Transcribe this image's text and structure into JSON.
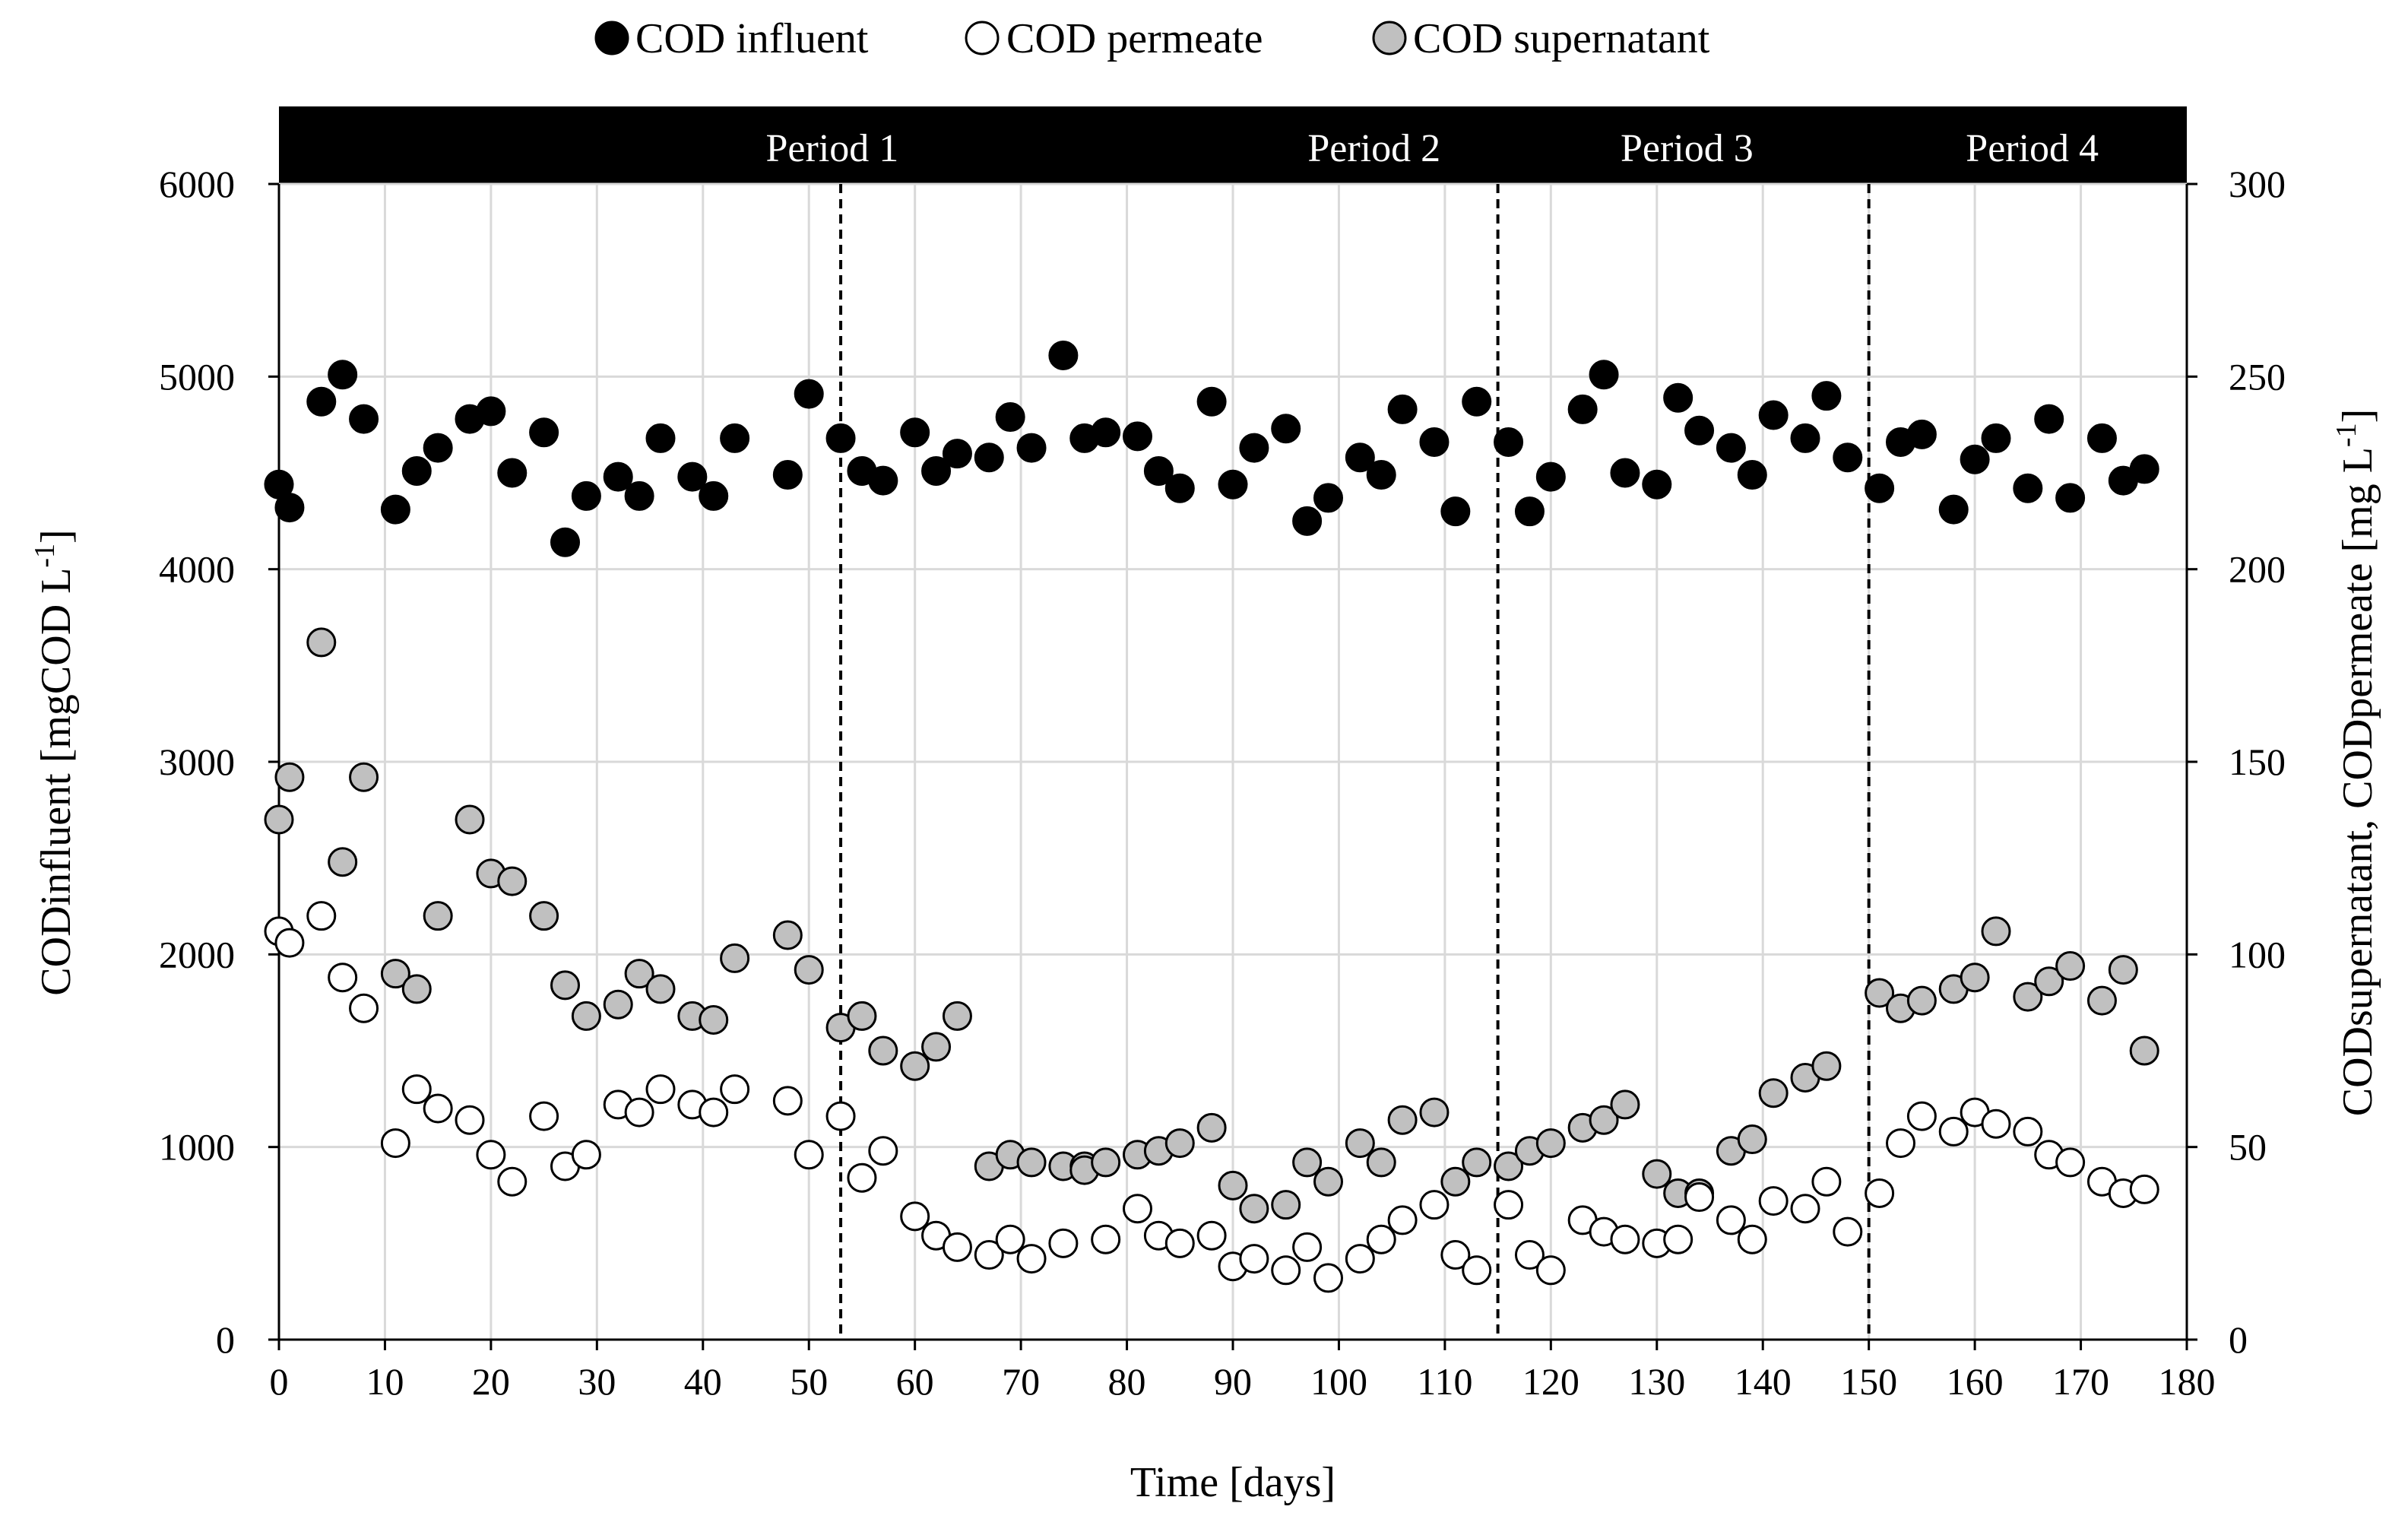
{
  "chart_data": {
    "type": "scatter",
    "xlabel": "Time [days]",
    "ylabel_left": "CODinfluent [mgCOD L",
    "ylabel_left_sup": "-1",
    "ylabel_left_end": "]",
    "ylabel_right": "CODsupernatant, CODpermeate [mg L",
    "ylabel_right_sup": "-1",
    "ylabel_right_end": "]",
    "xlim": [
      0,
      180
    ],
    "ylim_left": [
      0,
      6000
    ],
    "ylim_right": [
      0,
      300
    ],
    "x_ticks": [
      "0",
      "10",
      "20",
      "30",
      "40",
      "50",
      "60",
      "70",
      "80",
      "90",
      "100",
      "110",
      "120",
      "130",
      "140",
      "150",
      "160",
      "170",
      "180"
    ],
    "y_left_ticks": [
      "0",
      "1000",
      "2000",
      "3000",
      "4000",
      "5000",
      "6000"
    ],
    "y_right_ticks": [
      "0",
      "50",
      "100",
      "150",
      "200",
      "250",
      "300"
    ],
    "gridlines": true,
    "legend_position": "top-center",
    "periods": [
      {
        "label": "Period 1",
        "start": 0,
        "end": 53
      },
      {
        "label": "Period 2",
        "start": 53,
        "end": 115
      },
      {
        "label": "Period 3",
        "start": 115,
        "end": 150
      },
      {
        "label": "Period 4",
        "start": 150,
        "end": 180
      }
    ],
    "period_dividers": [
      53,
      115,
      150
    ],
    "series": [
      {
        "name": "COD influent",
        "axis": "left",
        "marker_fill": "#000000",
        "points": [
          [
            0,
            4440
          ],
          [
            1,
            4320
          ],
          [
            4,
            4870
          ],
          [
            6,
            5010
          ],
          [
            8,
            4780
          ],
          [
            11,
            4310
          ],
          [
            13,
            4510
          ],
          [
            15,
            4630
          ],
          [
            18,
            4780
          ],
          [
            20,
            4820
          ],
          [
            22,
            4500
          ],
          [
            25,
            4710
          ],
          [
            27,
            4140
          ],
          [
            29,
            4380
          ],
          [
            32,
            4480
          ],
          [
            34,
            4380
          ],
          [
            36,
            4680
          ],
          [
            39,
            4480
          ],
          [
            41,
            4380
          ],
          [
            43,
            4680
          ],
          [
            48,
            4490
          ],
          [
            50,
            4910
          ],
          [
            53,
            4680
          ],
          [
            55,
            4510
          ],
          [
            57,
            4460
          ],
          [
            60,
            4710
          ],
          [
            62,
            4510
          ],
          [
            64,
            4600
          ],
          [
            67,
            4580
          ],
          [
            69,
            4790
          ],
          [
            71,
            4630
          ],
          [
            74,
            5110
          ],
          [
            76,
            4680
          ],
          [
            78,
            4710
          ],
          [
            81,
            4690
          ],
          [
            83,
            4510
          ],
          [
            85,
            4420
          ],
          [
            88,
            4870
          ],
          [
            90,
            4440
          ],
          [
            92,
            4630
          ],
          [
            95,
            4730
          ],
          [
            97,
            4250
          ],
          [
            99,
            4370
          ],
          [
            102,
            4580
          ],
          [
            104,
            4490
          ],
          [
            106,
            4830
          ],
          [
            109,
            4660
          ],
          [
            111,
            4300
          ],
          [
            113,
            4870
          ],
          [
            116,
            4660
          ],
          [
            118,
            4300
          ],
          [
            120,
            4480
          ],
          [
            123,
            4830
          ],
          [
            125,
            5010
          ],
          [
            127,
            4500
          ],
          [
            130,
            4440
          ],
          [
            132,
            4890
          ],
          [
            134,
            4720
          ],
          [
            137,
            4630
          ],
          [
            139,
            4490
          ],
          [
            141,
            4800
          ],
          [
            144,
            4680
          ],
          [
            146,
            4900
          ],
          [
            148,
            4580
          ],
          [
            151,
            4420
          ],
          [
            153,
            4660
          ],
          [
            155,
            4700
          ],
          [
            158,
            4310
          ],
          [
            160,
            4570
          ],
          [
            162,
            4680
          ],
          [
            165,
            4420
          ],
          [
            167,
            4780
          ],
          [
            169,
            4370
          ],
          [
            172,
            4680
          ],
          [
            174,
            4460
          ],
          [
            176,
            4520
          ]
        ]
      },
      {
        "name": "COD permeate",
        "axis": "right",
        "marker_fill": "#ffffff",
        "points": [
          [
            0,
            106
          ],
          [
            1,
            103
          ],
          [
            4,
            110
          ],
          [
            6,
            94
          ],
          [
            8,
            86
          ],
          [
            11,
            51
          ],
          [
            13,
            65
          ],
          [
            15,
            60
          ],
          [
            18,
            57
          ],
          [
            20,
            48
          ],
          [
            22,
            41
          ],
          [
            25,
            58
          ],
          [
            27,
            45
          ],
          [
            29,
            48
          ],
          [
            32,
            61
          ],
          [
            34,
            59
          ],
          [
            36,
            65
          ],
          [
            39,
            61
          ],
          [
            41,
            59
          ],
          [
            43,
            65
          ],
          [
            48,
            62
          ],
          [
            50,
            48
          ],
          [
            53,
            58
          ],
          [
            55,
            42
          ],
          [
            57,
            49
          ],
          [
            60,
            32
          ],
          [
            62,
            27
          ],
          [
            64,
            24
          ],
          [
            67,
            22
          ],
          [
            69,
            26
          ],
          [
            71,
            21
          ],
          [
            74,
            25
          ],
          [
            78,
            26
          ],
          [
            81,
            34
          ],
          [
            83,
            27
          ],
          [
            85,
            25
          ],
          [
            88,
            27
          ],
          [
            90,
            19
          ],
          [
            92,
            21
          ],
          [
            95,
            18
          ],
          [
            97,
            24
          ],
          [
            99,
            16
          ],
          [
            102,
            21
          ],
          [
            104,
            26
          ],
          [
            106,
            31
          ],
          [
            109,
            35
          ],
          [
            111,
            22
          ],
          [
            113,
            18
          ],
          [
            116,
            35
          ],
          [
            118,
            22
          ],
          [
            120,
            18
          ],
          [
            123,
            31
          ],
          [
            125,
            28
          ],
          [
            127,
            26
          ],
          [
            130,
            25
          ],
          [
            132,
            26
          ],
          [
            134,
            37
          ],
          [
            137,
            31
          ],
          [
            139,
            26
          ],
          [
            141,
            36
          ],
          [
            144,
            34
          ],
          [
            146,
            41
          ],
          [
            148,
            28
          ],
          [
            151,
            38
          ],
          [
            153,
            51
          ],
          [
            155,
            58
          ],
          [
            158,
            54
          ],
          [
            160,
            59
          ],
          [
            162,
            56
          ],
          [
            165,
            54
          ],
          [
            167,
            48
          ],
          [
            169,
            46
          ],
          [
            172,
            41
          ],
          [
            174,
            38
          ],
          [
            176,
            39
          ]
        ]
      },
      {
        "name": "COD supernatant",
        "axis": "right",
        "marker_fill": "#c0c0c0",
        "points": [
          [
            0,
            135
          ],
          [
            1,
            146
          ],
          [
            4,
            181
          ],
          [
            6,
            124
          ],
          [
            8,
            146
          ],
          [
            11,
            95
          ],
          [
            13,
            91
          ],
          [
            15,
            110
          ],
          [
            18,
            135
          ],
          [
            20,
            121
          ],
          [
            22,
            119
          ],
          [
            25,
            110
          ],
          [
            27,
            92
          ],
          [
            29,
            84
          ],
          [
            32,
            87
          ],
          [
            34,
            95
          ],
          [
            36,
            91
          ],
          [
            39,
            84
          ],
          [
            41,
            83
          ],
          [
            43,
            99
          ],
          [
            48,
            105
          ],
          [
            50,
            96
          ],
          [
            53,
            81
          ],
          [
            55,
            84
          ],
          [
            57,
            75
          ],
          [
            60,
            71
          ],
          [
            62,
            76
          ],
          [
            64,
            84
          ],
          [
            67,
            45
          ],
          [
            69,
            48
          ],
          [
            71,
            46
          ],
          [
            74,
            45
          ],
          [
            76,
            45
          ],
          [
            76,
            44
          ],
          [
            78,
            46
          ],
          [
            81,
            48
          ],
          [
            83,
            49
          ],
          [
            85,
            51
          ],
          [
            88,
            55
          ],
          [
            90,
            40
          ],
          [
            92,
            34
          ],
          [
            95,
            35
          ],
          [
            97,
            46
          ],
          [
            99,
            41
          ],
          [
            102,
            51
          ],
          [
            104,
            46
          ],
          [
            106,
            57
          ],
          [
            109,
            59
          ],
          [
            111,
            41
          ],
          [
            113,
            46
          ],
          [
            116,
            45
          ],
          [
            118,
            49
          ],
          [
            120,
            51
          ],
          [
            123,
            55
          ],
          [
            125,
            57
          ],
          [
            127,
            61
          ],
          [
            130,
            43
          ],
          [
            132,
            38
          ],
          [
            134,
            38
          ],
          [
            137,
            49
          ],
          [
            139,
            52
          ],
          [
            141,
            64
          ],
          [
            144,
            68
          ],
          [
            146,
            71
          ],
          [
            151,
            90
          ],
          [
            153,
            86
          ],
          [
            155,
            88
          ],
          [
            158,
            91
          ],
          [
            160,
            94
          ],
          [
            162,
            106
          ],
          [
            165,
            89
          ],
          [
            167,
            93
          ],
          [
            169,
            97
          ],
          [
            172,
            88
          ],
          [
            174,
            96
          ],
          [
            176,
            75
          ]
        ]
      }
    ]
  }
}
